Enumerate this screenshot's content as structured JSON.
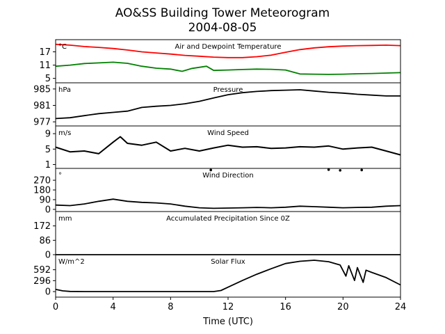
{
  "figure": {
    "title_line1": "AO&SS Building Tower Meteorogram",
    "title_line2": "2004-08-05",
    "xlabel": "Time (UTC)"
  },
  "colors": {
    "temperature": "#ff0000",
    "dewpoint": "#008000",
    "default": "#000000"
  },
  "chart_data": [
    {
      "type": "line",
      "title": "Air and Dewpoint Temperature",
      "unit": "°C",
      "xlim": [
        0,
        24
      ],
      "ylim": [
        3,
        22.5
      ],
      "yticks": [
        5,
        11,
        17
      ],
      "series": [
        {
          "values": [
            [
              0,
              20.4
            ],
            [
              1,
              20
            ],
            [
              2,
              19.4
            ],
            [
              3,
              19
            ],
            [
              4,
              18.5
            ],
            [
              5,
              17.8
            ],
            [
              6,
              17
            ],
            [
              7,
              16.5
            ],
            [
              8,
              16
            ],
            [
              9,
              15.4
            ],
            [
              10,
              15
            ],
            [
              11,
              14.6
            ],
            [
              12,
              14.4
            ],
            [
              13,
              14.4
            ],
            [
              14,
              14.8
            ],
            [
              15,
              15.5
            ],
            [
              16,
              16.8
            ],
            [
              17,
              18
            ],
            [
              18,
              18.8
            ],
            [
              19,
              19.3
            ],
            [
              20,
              19.6
            ],
            [
              21,
              19.8
            ],
            [
              22,
              19.9
            ],
            [
              23,
              20
            ],
            [
              24,
              19.8
            ]
          ]
        },
        {
          "values": [
            [
              0,
              10.5
            ],
            [
              1,
              11
            ],
            [
              2,
              11.7
            ],
            [
              3,
              12
            ],
            [
              4,
              12.3
            ],
            [
              5,
              11.8
            ],
            [
              6,
              10.5
            ],
            [
              7,
              9.6
            ],
            [
              8,
              9.2
            ],
            [
              8.8,
              8.2
            ],
            [
              9.5,
              9.5
            ],
            [
              10.5,
              10.5
            ],
            [
              11,
              8.6
            ],
            [
              12,
              8.8
            ],
            [
              13,
              9
            ],
            [
              14,
              9.2
            ],
            [
              15,
              9.1
            ],
            [
              16,
              8.8
            ],
            [
              17,
              7
            ],
            [
              18,
              6.9
            ],
            [
              19,
              6.8
            ],
            [
              20,
              6.9
            ],
            [
              21,
              7.1
            ],
            [
              22,
              7.2
            ],
            [
              23,
              7.4
            ],
            [
              24,
              7.6
            ]
          ]
        }
      ]
    },
    {
      "type": "line",
      "title": "Pressure",
      "unit": "hPa",
      "xlim": [
        0,
        24
      ],
      "ylim": [
        976,
        986.5
      ],
      "yticks": [
        977,
        981,
        985
      ],
      "series": [
        {
          "values": [
            [
              0,
              977.8
            ],
            [
              1,
              978
            ],
            [
              2,
              978.5
            ],
            [
              3,
              979
            ],
            [
              4,
              979.3
            ],
            [
              5,
              979.6
            ],
            [
              6,
              980.5
            ],
            [
              7,
              980.8
            ],
            [
              8,
              981
            ],
            [
              9,
              981.4
            ],
            [
              10,
              982
            ],
            [
              11,
              982.8
            ],
            [
              12,
              983.6
            ],
            [
              13,
              984.1
            ],
            [
              14,
              984.4
            ],
            [
              15,
              984.6
            ],
            [
              16,
              984.7
            ],
            [
              17,
              984.8
            ],
            [
              18,
              984.5
            ],
            [
              19,
              984.2
            ],
            [
              20,
              984
            ],
            [
              21,
              983.7
            ],
            [
              22,
              983.5
            ],
            [
              23,
              983.3
            ],
            [
              24,
              983.3
            ]
          ]
        }
      ]
    },
    {
      "type": "line",
      "title": "Wind Speed",
      "unit": "m/s",
      "xlim": [
        0,
        24
      ],
      "ylim": [
        0,
        11
      ],
      "yticks": [
        1,
        5,
        9
      ],
      "series": [
        {
          "values": [
            [
              0,
              5.5
            ],
            [
              1,
              4.3
            ],
            [
              2,
              4.5
            ],
            [
              3,
              3.8
            ],
            [
              4,
              6.8
            ],
            [
              4.5,
              8.2
            ],
            [
              5,
              6.5
            ],
            [
              6,
              6
            ],
            [
              7,
              6.8
            ],
            [
              8,
              4.5
            ],
            [
              9,
              5.2
            ],
            [
              10,
              4.5
            ],
            [
              11,
              5.3
            ],
            [
              12,
              6
            ],
            [
              13,
              5.5
            ],
            [
              14,
              5.6
            ],
            [
              15,
              5.2
            ],
            [
              16,
              5.3
            ],
            [
              17,
              5.6
            ],
            [
              18,
              5.5
            ],
            [
              19,
              5.8
            ],
            [
              20,
              5
            ],
            [
              21,
              5.3
            ],
            [
              22,
              5.5
            ],
            [
              23,
              4.5
            ],
            [
              24,
              3.5
            ]
          ]
        }
      ]
    },
    {
      "type": "line",
      "title": "Wind Direction",
      "unit": "°",
      "xlim": [
        0,
        24
      ],
      "ylim": [
        -20,
        380
      ],
      "yticks": [
        0,
        90,
        180,
        270
      ],
      "series": [
        {
          "values": [
            [
              0,
              40
            ],
            [
              1,
              35
            ],
            [
              2,
              50
            ],
            [
              3,
              75
            ],
            [
              4,
              95
            ],
            [
              5,
              75
            ],
            [
              6,
              65
            ],
            [
              7,
              60
            ],
            [
              8,
              50
            ],
            [
              9,
              30
            ],
            [
              10,
              15
            ],
            [
              11,
              10
            ],
            [
              12,
              12
            ],
            [
              13,
              15
            ],
            [
              14,
              18
            ],
            [
              15,
              15
            ],
            [
              16,
              20
            ],
            [
              17,
              30
            ],
            [
              18,
              25
            ],
            [
              19,
              20
            ],
            [
              20,
              15
            ],
            [
              21,
              18
            ],
            [
              22,
              20
            ],
            [
              23,
              30
            ],
            [
              24,
              35
            ]
          ]
        },
        {
          "type": "scatter",
          "values": [
            [
              10.8,
              365
            ],
            [
              19,
              368
            ],
            [
              19.8,
              362
            ],
            [
              21.3,
              365
            ]
          ]
        }
      ]
    },
    {
      "type": "line",
      "title": "Accumulated Precipitation Since 0Z",
      "unit": "mm",
      "xlim": [
        0,
        24
      ],
      "ylim": [
        0,
        258
      ],
      "yticks": [
        0,
        86,
        172
      ],
      "series": [
        {
          "values": [
            [
              0,
              0
            ],
            [
              24,
              0
            ]
          ]
        }
      ]
    },
    {
      "type": "line",
      "title": "Solar Flux",
      "unit": "W/m^2",
      "xlim": [
        0,
        24
      ],
      "xticks": [
        0,
        4,
        8,
        12,
        16,
        20,
        24
      ],
      "ylim": [
        -150,
        1000
      ],
      "yticks": [
        0,
        296,
        592
      ],
      "series": [
        {
          "values": [
            [
              0,
              60
            ],
            [
              0.5,
              20
            ],
            [
              1,
              5
            ],
            [
              2,
              0
            ],
            [
              10,
              0
            ],
            [
              11,
              0
            ],
            [
              11.5,
              30
            ],
            [
              12,
              120
            ],
            [
              13,
              300
            ],
            [
              14,
              470
            ],
            [
              15,
              620
            ],
            [
              16,
              760
            ],
            [
              17,
              820
            ],
            [
              18,
              850
            ],
            [
              19,
              810
            ],
            [
              19.8,
              720
            ],
            [
              20.2,
              420
            ],
            [
              20.4,
              700
            ],
            [
              20.8,
              300
            ],
            [
              21,
              650
            ],
            [
              21.4,
              250
            ],
            [
              21.6,
              580
            ],
            [
              22,
              520
            ],
            [
              23,
              380
            ],
            [
              24,
              180
            ]
          ]
        }
      ]
    }
  ]
}
